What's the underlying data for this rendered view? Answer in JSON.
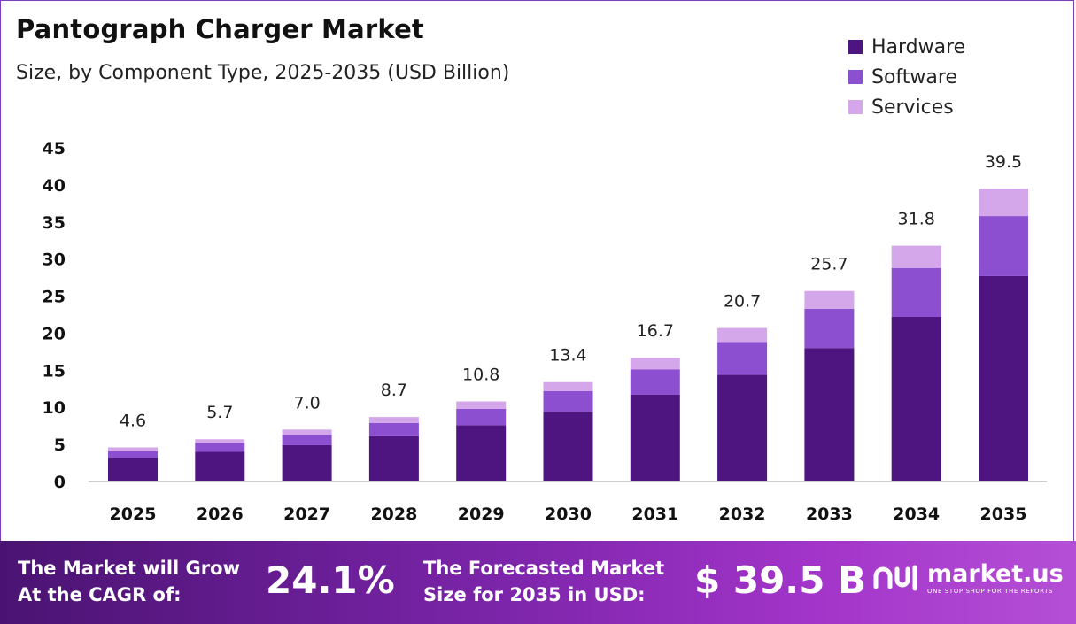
{
  "header": {
    "title": "Pantograph Charger Market",
    "subtitle": "Size, by Component Type, 2025-2035 (USD Billion)"
  },
  "colors": {
    "hardware": "#4e1580",
    "software": "#8c4fd0",
    "services": "#d3a7ea",
    "axis": "#cccccc",
    "text": "#111111"
  },
  "chart_data": {
    "type": "bar",
    "stacked": true,
    "title": "Pantograph Charger Market",
    "subtitle": "Size, by Component Type, 2025-2035 (USD Billion)",
    "xlabel": "",
    "ylabel": "",
    "ylim": [
      0,
      45
    ],
    "yticks": [
      0,
      5,
      10,
      15,
      20,
      25,
      30,
      35,
      40,
      45
    ],
    "grid": false,
    "legend_position": "top-right",
    "categories": [
      "2025",
      "2026",
      "2027",
      "2028",
      "2029",
      "2030",
      "2031",
      "2032",
      "2033",
      "2034",
      "2035"
    ],
    "series": [
      {
        "name": "Hardware",
        "color": "#4e1580",
        "values": [
          3.2,
          4.0,
          4.9,
          6.1,
          7.6,
          9.4,
          11.7,
          14.4,
          18.0,
          22.2,
          27.7
        ]
      },
      {
        "name": "Software",
        "color": "#8c4fd0",
        "values": [
          0.9,
          1.2,
          1.4,
          1.8,
          2.2,
          2.8,
          3.4,
          4.4,
          5.3,
          6.6,
          8.1
        ]
      },
      {
        "name": "Services",
        "color": "#d3a7ea",
        "values": [
          0.5,
          0.5,
          0.7,
          0.8,
          1.0,
          1.2,
          1.6,
          1.9,
          2.4,
          3.0,
          3.7
        ]
      }
    ],
    "totals": [
      "4.6",
      "5.7",
      "7.0",
      "8.7",
      "10.8",
      "13.4",
      "16.7",
      "20.7",
      "25.7",
      "31.8",
      "39.5"
    ]
  },
  "footer": {
    "cagr_label_line1": "The Market will Grow",
    "cagr_label_line2": "At the CAGR of:",
    "cagr_value": "24.1%",
    "forecast_label_line1": "The Forecasted Market",
    "forecast_label_line2": "Size for 2035 in USD:",
    "forecast_value": "$ 39.5 B",
    "brand_name": "market.us",
    "brand_tagline": "ONE STOP SHOP FOR THE REPORTS"
  }
}
